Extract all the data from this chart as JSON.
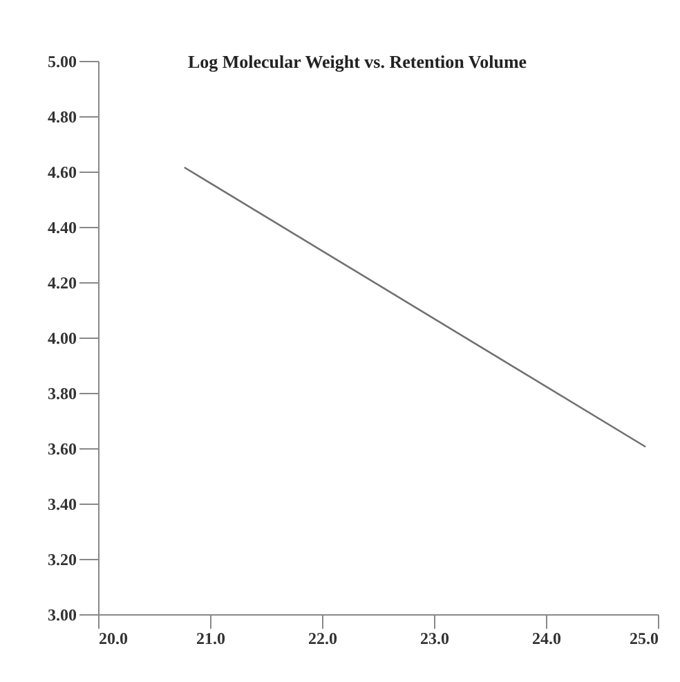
{
  "chart_data": {
    "type": "line",
    "title": "Log Molecular Weight vs. Retention Volume",
    "x": [
      20.77,
      24.89
    ],
    "series": [
      {
        "color": "#707070",
        "values": [
          4.615,
          3.605
        ]
      }
    ],
    "xlim": [
      20,
      25
    ],
    "xticks": [
      {
        "value": 20,
        "label": "20.0"
      },
      {
        "value": 21,
        "label": "21.0"
      },
      {
        "value": 22,
        "label": "22.0"
      },
      {
        "value": 23,
        "label": "23.0"
      },
      {
        "value": 24,
        "label": "24.0"
      },
      {
        "value": 25,
        "label": "25.0"
      }
    ],
    "ylim": [
      3,
      5
    ],
    "yticks": [
      {
        "value": 3,
        "label": "3.00"
      },
      {
        "value": 3.2,
        "label": "3.20"
      },
      {
        "value": 3.4,
        "label": "3.40"
      },
      {
        "value": 3.6,
        "label": "3.60"
      },
      {
        "value": 3.8,
        "label": "3.80"
      },
      {
        "value": 4,
        "label": "4.00"
      },
      {
        "value": 4.2,
        "label": "4.20"
      },
      {
        "value": 4.4,
        "label": "4.40"
      },
      {
        "value": 4.6,
        "label": "4.60"
      },
      {
        "value": 4.8,
        "label": "4.80"
      },
      {
        "value": 5,
        "label": "5.00"
      }
    ],
    "grid": false
  }
}
